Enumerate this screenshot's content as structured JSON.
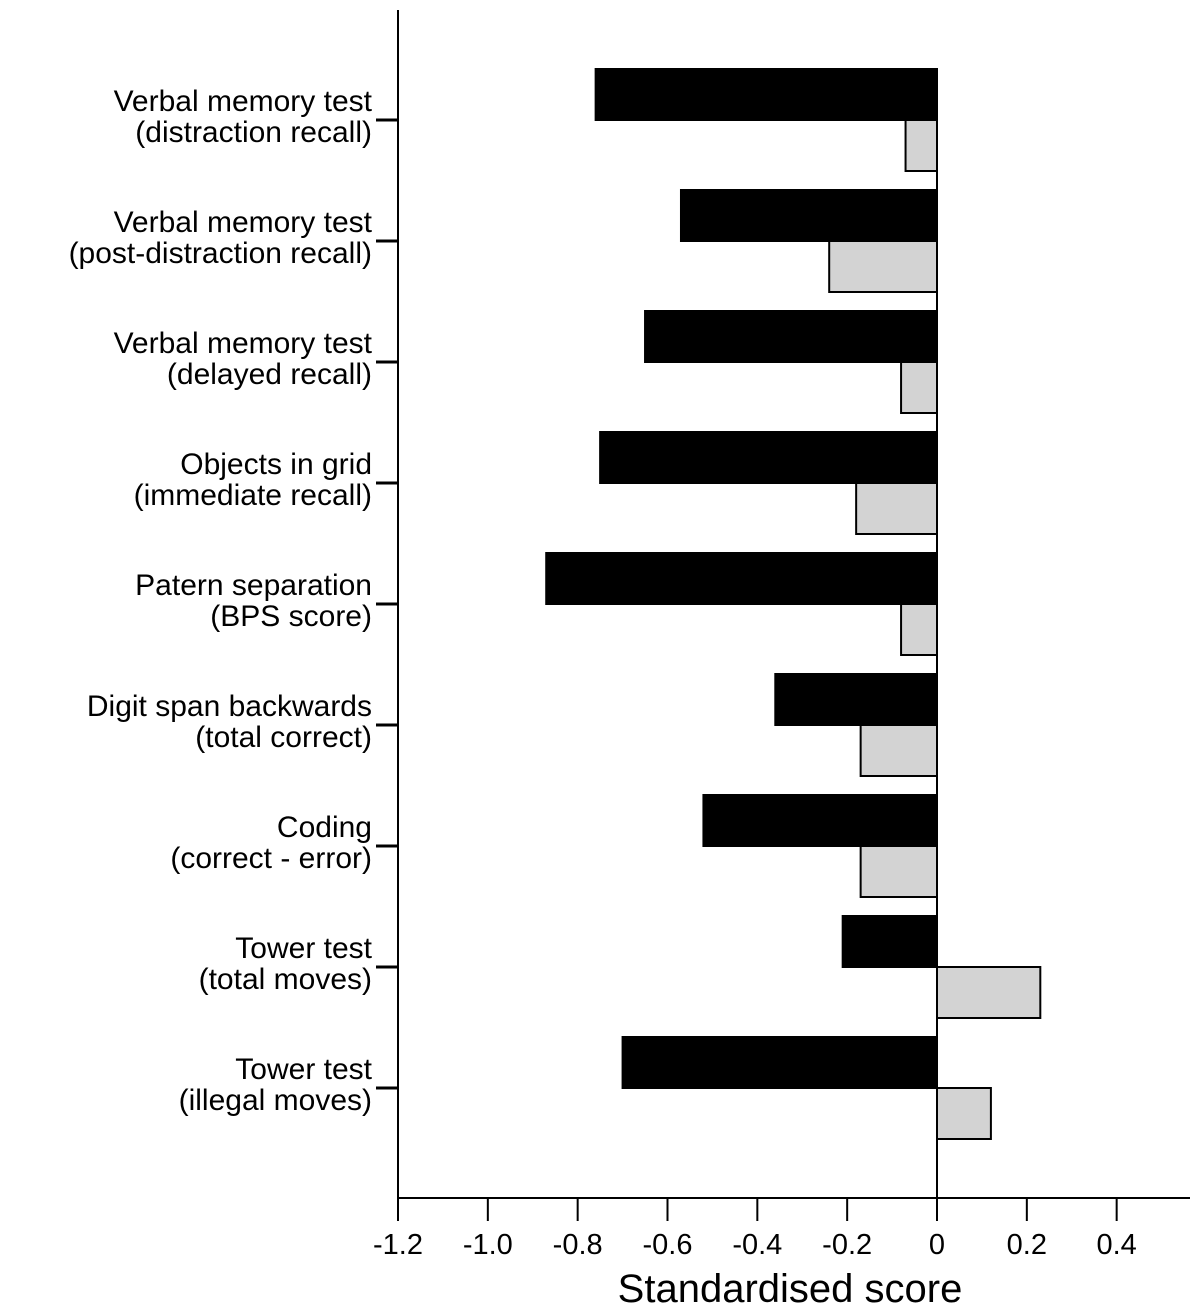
{
  "chart_data": {
    "type": "bar",
    "orientation": "horizontal",
    "categories": [
      [
        "Verbal memory test",
        "(distraction recall)"
      ],
      [
        "Verbal memory test",
        "(post-distraction recall)"
      ],
      [
        "Verbal memory test",
        "(delayed recall)"
      ],
      [
        "Objects in grid",
        "(immediate recall)"
      ],
      [
        "Patern separation",
        "(BPS score)"
      ],
      [
        "Digit span backwards",
        "(total correct)"
      ],
      [
        "Coding",
        "(correct - error)"
      ],
      [
        "Tower test",
        "(total moves)"
      ],
      [
        "Tower test",
        "(illegal moves)"
      ]
    ],
    "series": [
      {
        "color": "#000000",
        "values": [
          -0.76,
          -0.57,
          -0.65,
          -0.75,
          -0.87,
          -0.36,
          -0.52,
          -0.21,
          -0.7
        ]
      },
      {
        "color": "#d3d3d3",
        "values": [
          -0.07,
          -0.24,
          -0.08,
          -0.18,
          -0.08,
          -0.17,
          -0.17,
          0.23,
          0.12
        ]
      }
    ],
    "xlabel": "Standardised score",
    "ylabel": "",
    "title": "",
    "xlim": [
      -1.2,
      0.57
    ],
    "xticks": [
      -1.2,
      -1.0,
      -0.8,
      -0.6,
      -0.4,
      -0.2,
      0,
      0.2,
      0.4
    ],
    "xtick_labels": [
      "-1.2",
      "-1.0",
      "-0.8",
      "-0.6",
      "-0.4",
      "-0.2",
      "0",
      "0.2",
      "0.4"
    ],
    "grid": false,
    "legend": "none"
  }
}
